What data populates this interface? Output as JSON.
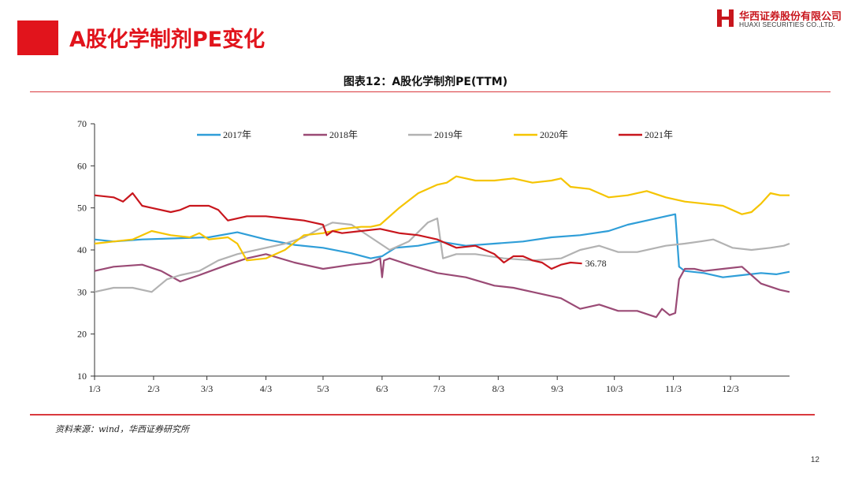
{
  "header": {
    "page_title": "A股化学制剂PE变化",
    "logo_cn": "华西证券股份有限公司",
    "logo_en": "HUAXI SECURITIES CO.,LTD."
  },
  "footer": {
    "source": "资料来源：wind，华西证券研究所",
    "page_number": "12"
  },
  "colors": {
    "accent": "#e1141c",
    "s2017": "#2f9ed8",
    "s2018": "#9a4a75",
    "s2019": "#b2b2b2",
    "s2020": "#f5c400",
    "s2021": "#c8161d"
  },
  "chart_data": {
    "type": "line",
    "title": "图表12：A股化学制剂PE(TTM)",
    "xlabel": "",
    "ylabel": "",
    "x_range": [
      0,
      365
    ],
    "ylim": [
      10,
      70
    ],
    "yticks": [
      10,
      20,
      30,
      40,
      50,
      60,
      70
    ],
    "xtick_labels": [
      "1/3",
      "2/3",
      "3/3",
      "4/3",
      "5/3",
      "6/3",
      "7/3",
      "8/3",
      "9/3",
      "10/3",
      "11/3",
      "12/3"
    ],
    "xtick_days": [
      0,
      31,
      59,
      90,
      120,
      151,
      181,
      212,
      243,
      273,
      304,
      334
    ],
    "legend": [
      "2017年",
      "2018年",
      "2019年",
      "2020年",
      "2021年"
    ],
    "legend_position": "top",
    "annotation": {
      "text": "36.78",
      "x": 256,
      "y": 36.78
    },
    "series": [
      {
        "name": "2017年",
        "x": [
          0,
          10,
          25,
          45,
          60,
          75,
          90,
          105,
          120,
          135,
          145,
          151,
          158,
          170,
          181,
          195,
          210,
          225,
          240,
          255,
          270,
          280,
          290,
          300,
          305,
          307,
          310,
          320,
          330,
          340,
          350,
          358,
          365
        ],
        "y": [
          42.5,
          42,
          42.5,
          42.8,
          43,
          44.2,
          42.5,
          41.2,
          40.5,
          39.2,
          38,
          38.5,
          40.5,
          41,
          42,
          41,
          41.5,
          42,
          43,
          43.5,
          44.5,
          46,
          47,
          48,
          48.5,
          36,
          35,
          34.5,
          33.5,
          34,
          34.5,
          34.2,
          34.8
        ]
      },
      {
        "name": "2018年",
        "x": [
          0,
          10,
          25,
          35,
          45,
          55,
          70,
          80,
          90,
          105,
          120,
          135,
          145,
          150,
          151,
          152,
          155,
          165,
          180,
          195,
          210,
          220,
          230,
          245,
          255,
          265,
          275,
          285,
          295,
          298,
          302,
          305,
          307,
          310,
          315,
          320,
          330,
          340,
          350,
          360,
          365
        ],
        "y": [
          35,
          36,
          36.5,
          35,
          32.5,
          34,
          36.5,
          38,
          39,
          37,
          35.5,
          36.5,
          37,
          38,
          33.5,
          37.5,
          38,
          36.5,
          34.5,
          33.5,
          31.5,
          31,
          30,
          28.5,
          26,
          27,
          25.5,
          25.5,
          24,
          26,
          24.5,
          25,
          33,
          35.5,
          35.5,
          35,
          35.5,
          36,
          32,
          30.5,
          30
        ]
      },
      {
        "name": "2019年",
        "x": [
          0,
          10,
          20,
          30,
          38,
          45,
          55,
          65,
          75,
          90,
          100,
          110,
          120,
          125,
          135,
          145,
          155,
          165,
          175,
          180,
          183,
          190,
          200,
          215,
          230,
          245,
          255,
          265,
          275,
          285,
          300,
          310,
          318,
          325,
          335,
          345,
          355,
          362,
          365
        ],
        "y": [
          30,
          31,
          31,
          30,
          33,
          34,
          35,
          37.5,
          39,
          40.5,
          41.5,
          43,
          45.5,
          46.5,
          46,
          43,
          40,
          42,
          46.5,
          47.5,
          38,
          39,
          39,
          38,
          37.5,
          38,
          40,
          41,
          39.5,
          39.5,
          41,
          41.5,
          42,
          42.5,
          40.5,
          40,
          40.5,
          41,
          41.5
        ]
      },
      {
        "name": "2020年",
        "x": [
          0,
          10,
          20,
          30,
          40,
          50,
          55,
          60,
          70,
          75,
          80,
          90,
          100,
          110,
          120,
          130,
          140,
          145,
          150,
          160,
          170,
          180,
          185,
          190,
          195,
          200,
          210,
          220,
          230,
          240,
          245,
          250,
          260,
          270,
          280,
          290,
          300,
          310,
          320,
          330,
          340,
          345,
          350,
          355,
          360,
          365
        ],
        "y": [
          41.5,
          42,
          42.5,
          44.5,
          43.5,
          43,
          44,
          42.5,
          43,
          41.5,
          37.5,
          38,
          40,
          43.5,
          44,
          45,
          45.5,
          45.5,
          46,
          50,
          53.5,
          55.5,
          56,
          57.5,
          57,
          56.5,
          56.5,
          57,
          56,
          56.5,
          57,
          55,
          54.5,
          52.5,
          53,
          54,
          52.5,
          51.5,
          51,
          50.5,
          48.5,
          49,
          51,
          53.5,
          53,
          53
        ]
      },
      {
        "name": "2021年",
        "x": [
          0,
          10,
          15,
          20,
          25,
          30,
          40,
          45,
          50,
          60,
          65,
          70,
          80,
          90,
          100,
          110,
          115,
          120,
          122,
          125,
          130,
          140,
          150,
          160,
          170,
          180,
          190,
          200,
          210,
          215,
          220,
          225,
          230,
          235,
          240,
          245,
          250,
          256
        ],
        "y": [
          53,
          52.5,
          51.5,
          53.5,
          50.5,
          50,
          49,
          49.5,
          50.5,
          50.5,
          49.5,
          47,
          48,
          48,
          47.5,
          47,
          46.5,
          46,
          43.5,
          44.5,
          44,
          44.5,
          45,
          44,
          43.5,
          42.5,
          40.5,
          41,
          39,
          37,
          38.5,
          38.5,
          37.5,
          37,
          35.5,
          36.5,
          37,
          36.78
        ]
      }
    ]
  }
}
